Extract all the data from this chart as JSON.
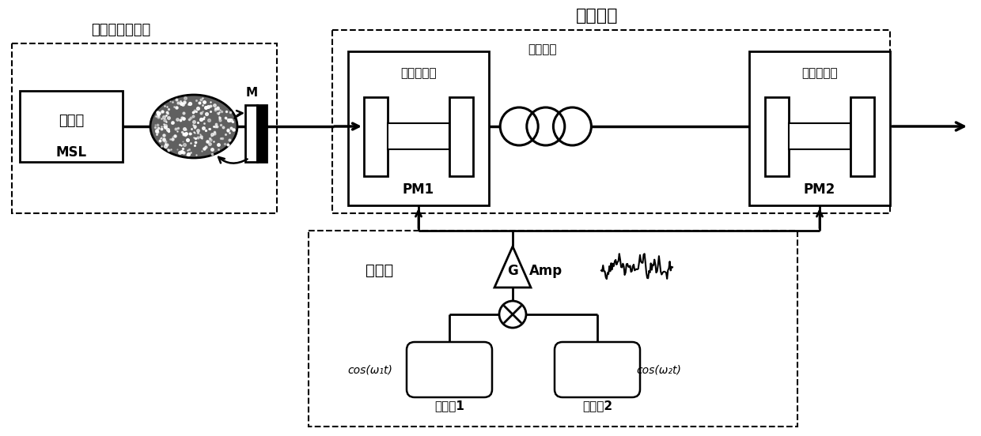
{
  "title": "时间透镜",
  "laser_label": "混沌外腔激光器",
  "driver_label": "驱动端",
  "laser_box_label": "激光器",
  "laser_box_sub": "MSL",
  "mirror_label": "M",
  "pm1_top": "相位调制器",
  "pm1_bot": "PM1",
  "pm2_top": "相位调制器",
  "pm2_bot": "PM2",
  "dispersion_top": "色散介质",
  "amp_label": "Amp",
  "g_label": "G",
  "rf1_label": "射频源1",
  "rf2_label": "射频源2",
  "cos1_label": "cos(ω₁t)",
  "cos2_label": "cos(ω₂t)",
  "bg_color": "#ffffff",
  "line_color": "#000000",
  "fig_w": 12.4,
  "fig_h": 5.52,
  "dpi": 100
}
